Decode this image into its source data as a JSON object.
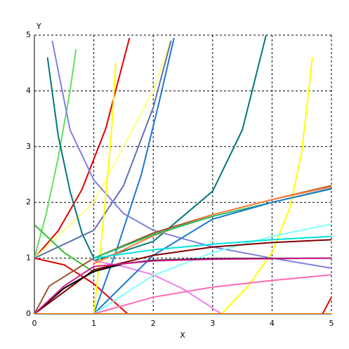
{
  "chart_data": {
    "type": "line",
    "x_label": "X",
    "y_label": "Y",
    "xlim": [
      0,
      5
    ],
    "ylim": [
      0,
      5
    ],
    "xticks": [
      0,
      1,
      2,
      3,
      4,
      5
    ],
    "yticks": [
      0,
      1,
      2,
      3,
      4,
      5
    ],
    "grid": true,
    "series": [
      {
        "color": "#e00000",
        "x": [
          0,
          0.4,
          0.8,
          1.2,
          1.6
        ],
        "values": [
          1,
          1.49,
          2.23,
          3.32,
          4.95
        ]
      },
      {
        "color": "#ffff80",
        "x": [
          0,
          1,
          2,
          2.3
        ],
        "values": [
          1,
          2,
          4,
          4.92
        ]
      },
      {
        "color": "#e00000",
        "x": [
          0,
          0.5,
          1,
          1.57
        ],
        "values": [
          1,
          0.88,
          0.54,
          0
        ]
      },
      {
        "color": "#60e060",
        "x": [
          0,
          0.2,
          0.4,
          0.6,
          0.7
        ],
        "values": [
          1,
          1.8,
          2.8,
          4,
          4.75
        ]
      },
      {
        "color": "#30c030",
        "x": [
          0,
          0.5,
          1
        ],
        "values": [
          1.6,
          1.1,
          0.75
        ]
      },
      {
        "color": "#007878",
        "x": [
          0.22,
          0.4,
          0.6,
          0.8,
          1
        ],
        "values": [
          4.6,
          3.2,
          2.2,
          1.45,
          1
        ]
      },
      {
        "color": "#007878",
        "x": [
          1,
          2,
          3,
          3.5,
          3.9
        ],
        "values": [
          0.95,
          1.3,
          2.2,
          3.3,
          5
        ]
      },
      {
        "color": "#1e78d0",
        "x": [
          1,
          1.4,
          1.8,
          2.1,
          2.35
        ],
        "values": [
          0,
          1.2,
          2.5,
          3.8,
          4.95
        ]
      },
      {
        "color": "#6070b0",
        "x": [
          0,
          1,
          1.5,
          2,
          2.3
        ],
        "values": [
          1,
          1.5,
          2.3,
          3.7,
          4.9
        ]
      },
      {
        "color": "#8080e0",
        "x": [
          0.3,
          0.6,
          1,
          1.5,
          2,
          3,
          4,
          5
        ],
        "values": [
          4.9,
          3.3,
          2.4,
          1.8,
          1.5,
          1.2,
          1.0,
          0.82
        ]
      },
      {
        "color": "#ffff00",
        "x": [
          1,
          1.1,
          1.2,
          1.3,
          1.37
        ],
        "values": [
          0,
          1,
          2.1,
          3.3,
          4.5
        ]
      },
      {
        "color": "#ffff00",
        "x": [
          3.15,
          3.6,
          4,
          4.3,
          4.5,
          4.68
        ],
        "values": [
          0,
          0.5,
          1.1,
          1.9,
          2.9,
          4.6
        ]
      },
      {
        "color": "#ee82ee",
        "x": [
          1,
          1.5,
          2,
          2.5,
          3.15
        ],
        "values": [
          0.95,
          0.85,
          0.7,
          0.45,
          0
        ]
      },
      {
        "color": "#a0522d",
        "x": [
          0,
          0.25,
          1,
          2,
          3,
          4,
          5
        ],
        "values": [
          0,
          0.5,
          1,
          1.45,
          1.78,
          2.05,
          2.3
        ]
      },
      {
        "color": "#ff8040",
        "x": [
          1,
          2,
          3,
          4,
          5
        ],
        "values": [
          0.9,
          1.4,
          1.78,
          2.05,
          2.28
        ]
      },
      {
        "color": "#20c060",
        "x": [
          1,
          2,
          3,
          4,
          5
        ],
        "values": [
          1,
          1.42,
          1.75,
          2,
          2.24
        ]
      },
      {
        "color": "#1e78d0",
        "x": [
          1,
          2,
          3,
          4,
          5
        ],
        "values": [
          0,
          1.05,
          1.7,
          2.0,
          2.25
        ]
      },
      {
        "color": "#80ffff",
        "x": [
          1,
          2,
          3,
          4,
          5
        ],
        "values": [
          0,
          0.69,
          1.1,
          1.39,
          1.61
        ]
      },
      {
        "color": "#00e0e0",
        "x": [
          1,
          2,
          3,
          4,
          5
        ],
        "values": [
          1,
          1.15,
          1.25,
          1.33,
          1.39
        ]
      },
      {
        "color": "#800000",
        "x": [
          0,
          1,
          2,
          3,
          4,
          5
        ],
        "values": [
          0,
          0.79,
          1.05,
          1.2,
          1.28,
          1.33
        ]
      },
      {
        "color": "#000000",
        "x": [
          0,
          0.5,
          1,
          1.5,
          2,
          3,
          5
        ],
        "values": [
          0,
          0.46,
          0.76,
          0.9,
          0.96,
          0.99,
          1
        ]
      },
      {
        "color": "#ff69b4",
        "x": [
          1,
          2,
          3,
          4,
          5
        ],
        "values": [
          0,
          0.3,
          0.48,
          0.6,
          0.7
        ]
      },
      {
        "color": "#d02090",
        "x": [
          0,
          0.5,
          1,
          2,
          3,
          5
        ],
        "values": [
          0,
          0.5,
          0.85,
          0.95,
          0.98,
          1
        ]
      },
      {
        "color": "#ff8000",
        "x": [
          0,
          5
        ],
        "values": [
          0,
          0
        ]
      },
      {
        "color": "#e00000",
        "x": [
          4.85,
          5
        ],
        "values": [
          0,
          0.3
        ]
      }
    ]
  }
}
